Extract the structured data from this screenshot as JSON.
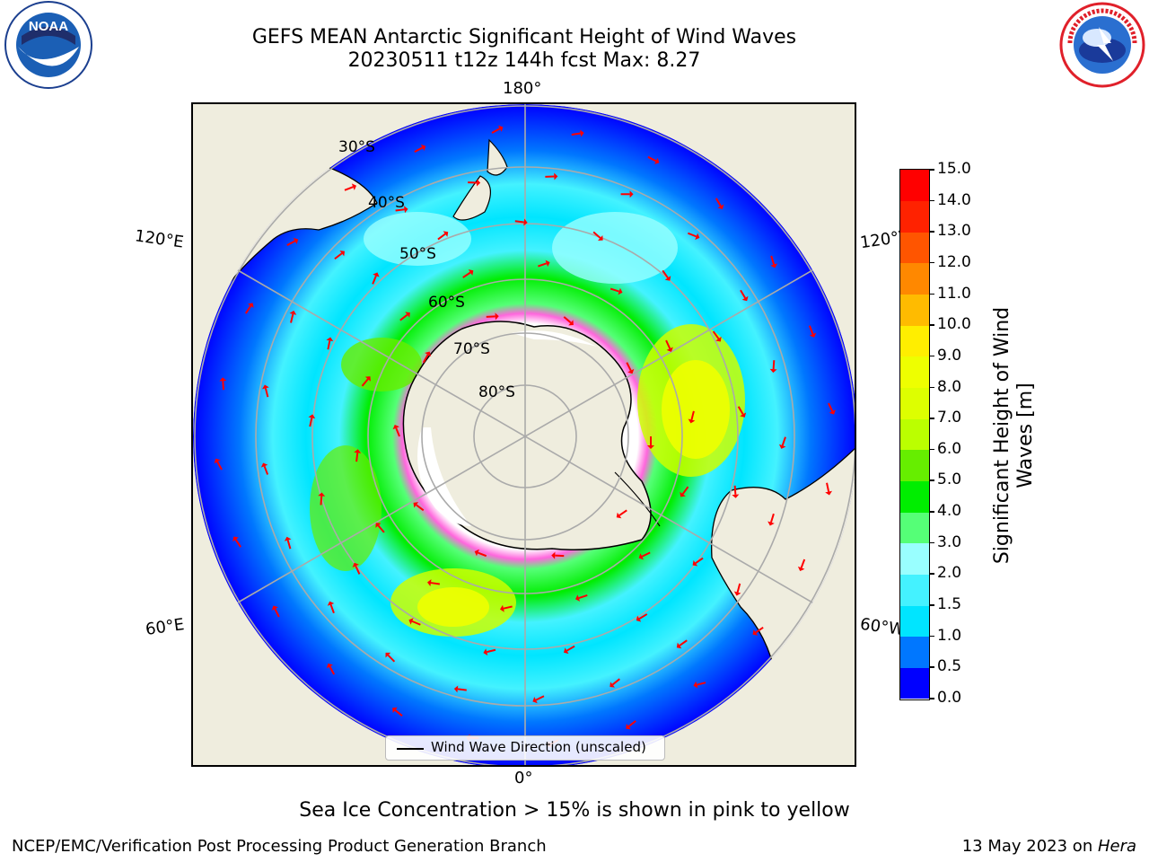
{
  "title": {
    "line1": "GEFS MEAN Antarctic Significant Height of Wind Waves",
    "line2": "20230511 t12z 144h fcst   Max: 8.27"
  },
  "logos": {
    "noaa": {
      "text": "NOAA",
      "ring_text": "NATIONAL OCEANIC AND ATMOSPHERIC ADMINISTRATION · U.S. DEPARTMENT OF COMMERCE",
      "color": "#1b5fb5"
    },
    "nws": {
      "ring_text": "NATIONAL WEATHER SERVICE",
      "ring_color": "#e0202a",
      "inner_color": "#2a6fd0"
    }
  },
  "map": {
    "projection": "south polar stereographic",
    "longitude_labels": {
      "top": "180°",
      "left_upper": "120°E",
      "right_upper": "120°W",
      "left_lower": "60°E",
      "right_lower": "60°W",
      "bottom": "0°"
    },
    "latitude_labels": [
      "30°S",
      "40°S",
      "50°S",
      "60°S",
      "70°S",
      "80°S"
    ],
    "land_color": "#efedde",
    "ocean_background_color": "#0033ff",
    "legend": {
      "label": "Wind Wave Direction (unscaled)"
    },
    "arrow_color": "#ff0000"
  },
  "colorbar": {
    "label": "Significant Height of Wind Waves [m]",
    "ticks": [
      "0.0",
      "0.5",
      "1.0",
      "1.5",
      "2.0",
      "3.0",
      "4.0",
      "5.0",
      "6.0",
      "7.0",
      "8.0",
      "9.0",
      "10.0",
      "11.0",
      "12.0",
      "13.0",
      "14.0",
      "15.0"
    ],
    "colors": [
      "#0000ff",
      "#0077ff",
      "#00e5ff",
      "#44f2ff",
      "#99ffff",
      "#55ff77",
      "#00ee00",
      "#66ee00",
      "#bbff00",
      "#ddff00",
      "#eeff00",
      "#ffee00",
      "#ffbb00",
      "#ff8800",
      "#ff5500",
      "#ff2200",
      "#ff0000"
    ]
  },
  "ice_note": "Sea Ice Concentration > 15% is shown in pink to yellow",
  "footer": {
    "left": "NCEP/EMC/Verification Post Processing Product Generation Branch",
    "right_date": "13 May 2023 on ",
    "right_machine": "Hera"
  }
}
